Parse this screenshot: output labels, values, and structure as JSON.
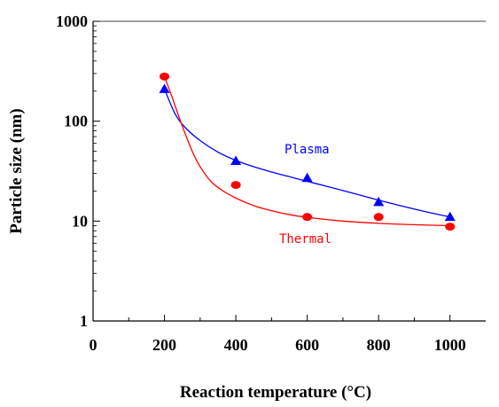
{
  "chart_data": {
    "type": "scatter",
    "xlabel": "Reaction temperature (°C)",
    "ylabel": "Particle size (nm)",
    "xlim": [
      0,
      1100
    ],
    "ylim": [
      1,
      1000
    ],
    "y_scale": "log",
    "x_ticks": [
      0,
      200,
      400,
      600,
      800,
      1000
    ],
    "y_ticks": [
      1,
      10,
      100,
      1000
    ],
    "x_tick_labels": [
      "0",
      "200",
      "400",
      "600",
      "800",
      "1000"
    ],
    "y_tick_labels": [
      "1",
      "10",
      "100",
      "1000"
    ],
    "grid": false,
    "series": [
      {
        "name": "Plasma",
        "color": "#0000ff",
        "marker": "triangle",
        "x": [
          200,
          400,
          600,
          800,
          1000
        ],
        "y": [
          210,
          40,
          27,
          15.5,
          11
        ],
        "fit_x": [
          200,
          230,
          260,
          300,
          350,
          400,
          450,
          500,
          550,
          600,
          650,
          700,
          750,
          800,
          850,
          900,
          950,
          1000
        ],
        "fit_y": [
          210,
          118,
          85,
          64,
          49,
          40.5,
          35,
          31,
          27.8,
          25,
          22.5,
          20.2,
          18.1,
          16.2,
          14.6,
          13.2,
          12,
          11
        ]
      },
      {
        "name": "Thermal",
        "color": "#ff0000",
        "marker": "circle",
        "x": [
          200,
          400,
          600,
          800,
          1000
        ],
        "y": [
          280,
          23,
          11,
          11,
          8.8
        ],
        "fit_x": [
          200,
          220,
          240,
          260,
          280,
          300,
          330,
          360,
          400,
          450,
          500,
          550,
          600,
          700,
          800,
          900,
          1000
        ],
        "fit_y": [
          280,
          180,
          112,
          72,
          48,
          35,
          25,
          20.5,
          17,
          14.3,
          12.7,
          11.6,
          10.9,
          10,
          9.5,
          9.2,
          9.0
        ]
      }
    ]
  }
}
